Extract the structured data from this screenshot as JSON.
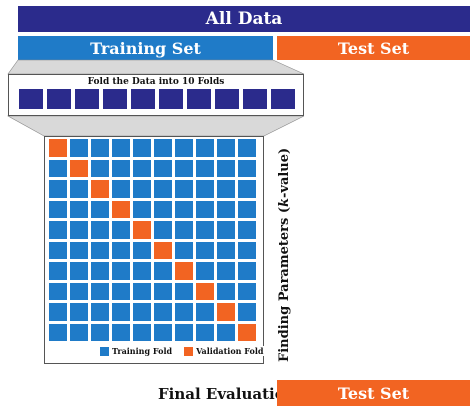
{
  "header": {
    "all_data": "All Data",
    "training_set": "Training Set",
    "test_set": "Test Set"
  },
  "folds_panel": {
    "title": "Fold the Data into 10 Folds",
    "fold_count": 10
  },
  "grid": {
    "rows": 10,
    "cols": 10
  },
  "legend": {
    "training": "Training Fold",
    "validation": "Validation Fold"
  },
  "side_label": {
    "prefix": "Finding Parameters (",
    "italic": "k",
    "suffix": "-value)"
  },
  "footer": {
    "final_evaluation": "Final Evaluation",
    "test_set": "Test Set"
  },
  "colors": {
    "all_data": "#2b2b8c",
    "training": "#1f7bc8",
    "validation": "#f26422",
    "test": "#f26422"
  }
}
